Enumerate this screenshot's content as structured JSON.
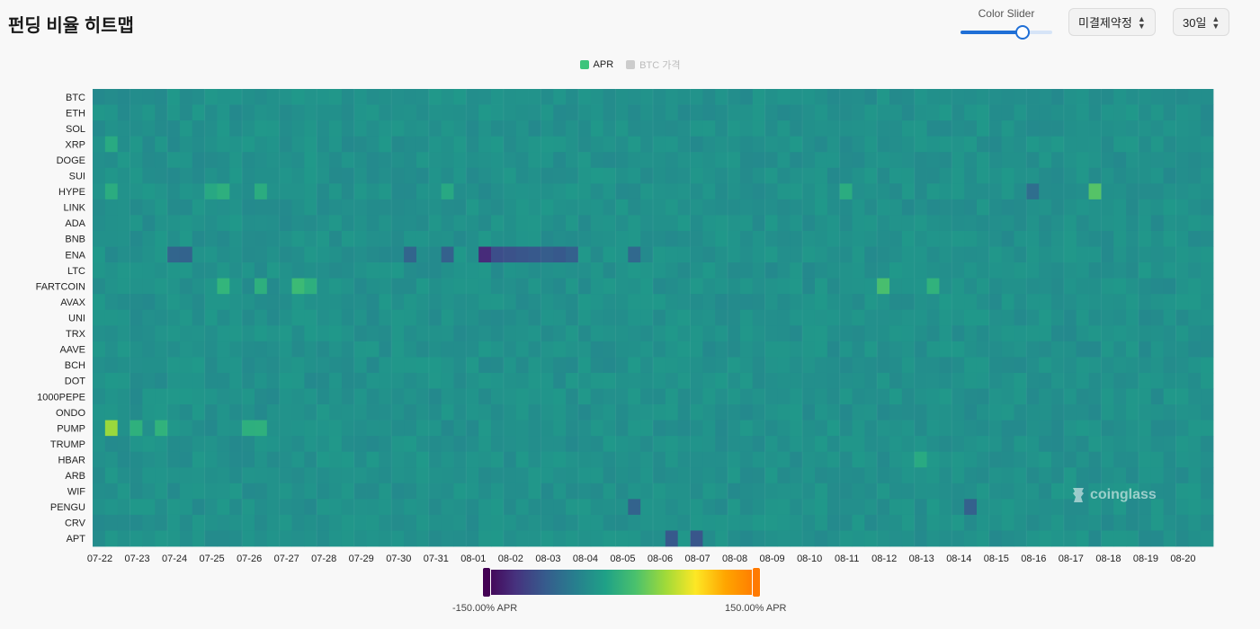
{
  "header": {
    "title": "펀딩 비율 히트맵",
    "slider_label": "Color Slider",
    "slider_value": 0.67,
    "exchange_select": "미결제약정",
    "period_select": "30일"
  },
  "legend": [
    {
      "label": "APR",
      "color": "#3cc47c",
      "active": true
    },
    {
      "label": "BTC 가격",
      "color": "#cccccc",
      "active": false
    }
  ],
  "watermark": "coinglass",
  "colorbar": {
    "min_label": "-150.00% APR",
    "max_label": "150.00% APR",
    "min": -150,
    "max": 150
  },
  "chart_data": {
    "type": "heatmap",
    "title": "",
    "xlabel": "",
    "ylabel": "",
    "value_unit": "% APR",
    "color_range": [
      -150,
      150
    ],
    "y": [
      "BTC",
      "ETH",
      "SOL",
      "XRP",
      "DOGE",
      "SUI",
      "HYPE",
      "LINK",
      "ADA",
      "BNB",
      "ENA",
      "LTC",
      "FARTCOIN",
      "AVAX",
      "UNI",
      "TRX",
      "AAVE",
      "BCH",
      "DOT",
      "1000PEPE",
      "ONDO",
      "PUMP",
      "TRUMP",
      "HBAR",
      "ARB",
      "WIF",
      "PENGU",
      "CRV",
      "APT"
    ],
    "x_ticks": [
      "07-22",
      "07-23",
      "07-24",
      "07-25",
      "07-26",
      "07-27",
      "07-28",
      "07-29",
      "07-30",
      "07-31",
      "08-01",
      "08-02",
      "08-03",
      "08-04",
      "08-05",
      "08-06",
      "08-07",
      "08-08",
      "08-09",
      "08-10",
      "08-11",
      "08-12",
      "08-13",
      "08-14",
      "08-15",
      "08-16",
      "08-17",
      "08-18",
      "08-19",
      "08-20"
    ],
    "periods_per_day": 3,
    "baseline_value": 10,
    "highlights": [
      {
        "symbol": "HYPE",
        "time": "07-22 08:00",
        "value": 35
      },
      {
        "symbol": "HYPE",
        "time": "07-25 00:00",
        "value": 30
      },
      {
        "symbol": "HYPE",
        "time": "07-25 08:00",
        "value": 38
      },
      {
        "symbol": "HYPE",
        "time": "07-26 08:00",
        "value": 35
      },
      {
        "symbol": "HYPE",
        "time": "07-31 08:00",
        "value": 30
      },
      {
        "symbol": "HYPE",
        "time": "08-11 00:00",
        "value": 35
      },
      {
        "symbol": "HYPE",
        "time": "08-16 00:00",
        "value": -28
      },
      {
        "symbol": "HYPE",
        "time": "08-17 16:00",
        "value": 65
      },
      {
        "symbol": "XRP",
        "time": "07-22 08:00",
        "value": 32
      },
      {
        "symbol": "ENA",
        "time": "07-24 00:00",
        "value": -40
      },
      {
        "symbol": "ENA",
        "time": "07-24 08:00",
        "value": -42
      },
      {
        "symbol": "ENA",
        "time": "07-30 08:00",
        "value": -40
      },
      {
        "symbol": "ENA",
        "time": "07-31 08:00",
        "value": -45
      },
      {
        "symbol": "ENA",
        "time": "08-01 08:00",
        "value": -110
      },
      {
        "symbol": "ENA",
        "time": "08-01 16:00",
        "value": -70
      },
      {
        "symbol": "ENA",
        "time": "08-02 00:00",
        "value": -65
      },
      {
        "symbol": "ENA",
        "time": "08-02 08:00",
        "value": -60
      },
      {
        "symbol": "ENA",
        "time": "08-02 16:00",
        "value": -55
      },
      {
        "symbol": "ENA",
        "time": "08-03 00:00",
        "value": -50
      },
      {
        "symbol": "ENA",
        "time": "08-03 08:00",
        "value": -55
      },
      {
        "symbol": "ENA",
        "time": "08-03 16:00",
        "value": -45
      },
      {
        "symbol": "ENA",
        "time": "08-05 08:00",
        "value": -35
      },
      {
        "symbol": "FARTCOIN",
        "time": "07-25 08:00",
        "value": 45
      },
      {
        "symbol": "FARTCOIN",
        "time": "07-26 08:00",
        "value": 38
      },
      {
        "symbol": "FARTCOIN",
        "time": "07-27 08:00",
        "value": 52
      },
      {
        "symbol": "FARTCOIN",
        "time": "07-27 16:00",
        "value": 38
      },
      {
        "symbol": "FARTCOIN",
        "time": "08-12 00:00",
        "value": 58
      },
      {
        "symbol": "FARTCOIN",
        "time": "08-13 08:00",
        "value": 42
      },
      {
        "symbol": "PUMP",
        "time": "07-22 08:00",
        "value": 95
      },
      {
        "symbol": "PUMP",
        "time": "07-23 00:00",
        "value": 40
      },
      {
        "symbol": "PUMP",
        "time": "07-23 16:00",
        "value": 42
      },
      {
        "symbol": "PUMP",
        "time": "07-26 00:00",
        "value": 38
      },
      {
        "symbol": "PUMP",
        "time": "07-26 08:00",
        "value": 40
      },
      {
        "symbol": "PENGU",
        "time": "08-05 08:00",
        "value": -42
      },
      {
        "symbol": "PENGU",
        "time": "08-14 08:00",
        "value": -45
      },
      {
        "symbol": "APT",
        "time": "08-06 08:00",
        "value": -55
      },
      {
        "symbol": "APT",
        "time": "08-07 00:00",
        "value": -60
      },
      {
        "symbol": "HBAR",
        "time": "08-13 00:00",
        "value": 32
      }
    ]
  }
}
